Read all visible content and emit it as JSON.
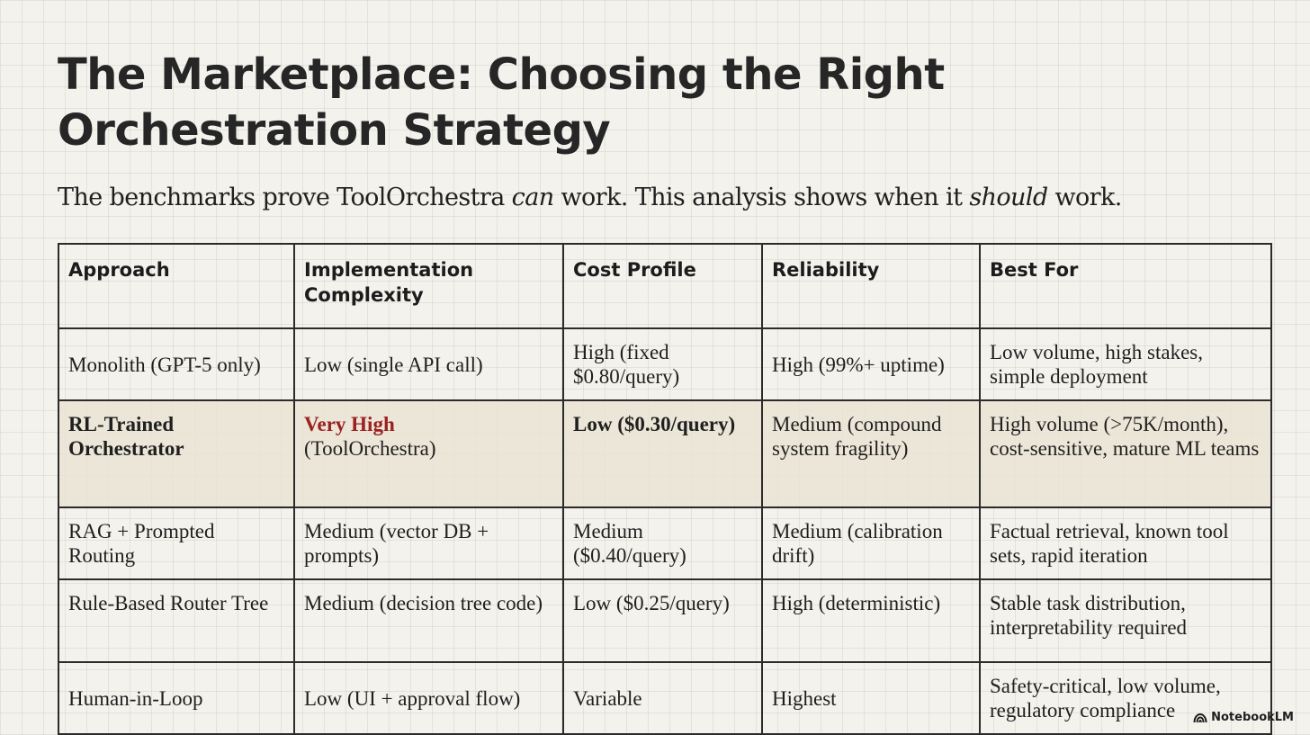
{
  "title": "The Marketplace: Choosing the Right Orchestration Strategy",
  "subtitle": {
    "part1": "The benchmarks prove ToolOrchestra ",
    "em1": "can",
    "part2": " work. This analysis shows when it ",
    "em2": "should",
    "part3": " work."
  },
  "table": {
    "headers": [
      "Approach",
      "Implementation Complexity",
      "Cost Profile",
      "Reliability",
      "Best For"
    ],
    "rows": [
      {
        "approach": "Monolith (GPT-5 only)",
        "complexity": "Low (single API call)",
        "cost": "High (fixed $0.80/query)",
        "reliability": "High (99%+ uptime)",
        "best_for": "Low volume, high stakes, simple deployment"
      },
      {
        "approach": "RL-Trained Orchestrator",
        "complexity_emph": "Very High",
        "complexity_rest": "(ToolOrchestra)",
        "cost": "Low ($0.30/query)",
        "reliability": "Medium (compound system fragility)",
        "best_for": "High volume (>75K/month), cost-sensitive, mature ML teams"
      },
      {
        "approach": "RAG + Prompted Routing",
        "complexity": "Medium (vector DB + prompts)",
        "cost": "Medium ($0.40/query)",
        "reliability": "Medium (calibration drift)",
        "best_for": "Factual retrieval, known tool sets, rapid iteration"
      },
      {
        "approach": "Rule-Based Router Tree",
        "complexity": "Medium (decision tree code)",
        "cost": "Low ($0.25/query)",
        "reliability": "High (deterministic)",
        "best_for": "Stable task distribution, interpretability required"
      },
      {
        "approach": "Human-in-Loop",
        "complexity": "Low (UI + approval flow)",
        "cost": "Variable",
        "reliability": "Highest",
        "best_for": "Safety-critical, low volume, regulatory compliance"
      }
    ]
  },
  "brand": {
    "label": "NotebookLM",
    "icon": "notebooklm-logo-icon"
  },
  "colors": {
    "accent": "#9b2121",
    "background": "#f3f2ec",
    "highlight_row": "#e9e4d4"
  }
}
